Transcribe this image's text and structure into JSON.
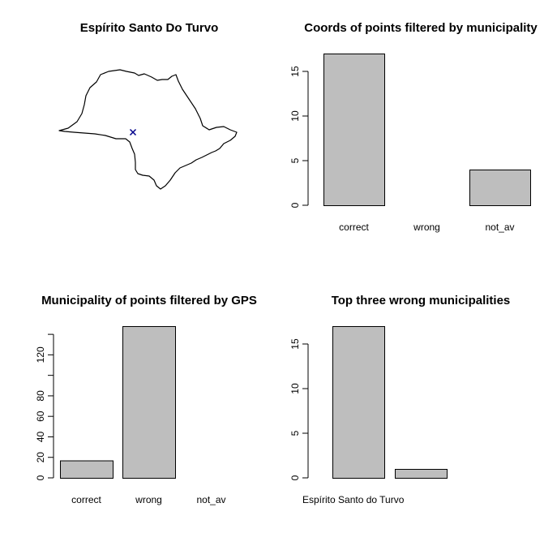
{
  "map": {
    "title": "Espírito Santo Do Turvo",
    "marker_color": "#00008b"
  },
  "chart_data": [
    {
      "type": "bar",
      "title": "Coords of points filtered by municipality",
      "categories": [
        "correct",
        "wrong",
        "not_av"
      ],
      "values": [
        17,
        0,
        4
      ],
      "ylim": [
        0,
        17
      ],
      "yticks": [
        0,
        5,
        10,
        15
      ],
      "bar_color": "#bebebe"
    },
    {
      "type": "bar",
      "title": "Municipality of points filtered by GPS",
      "categories": [
        "correct",
        "wrong",
        "not_av"
      ],
      "values": [
        17,
        148,
        0
      ],
      "ylim": [
        0,
        148
      ],
      "yticks": [
        0,
        20,
        40,
        60,
        80,
        100,
        120,
        140
      ],
      "ytick_labels": [
        "0",
        "20",
        "40",
        "60",
        "80",
        "",
        "120",
        ""
      ],
      "bar_color": "#bebebe"
    },
    {
      "type": "bar",
      "title": "Top three wrong municipalities",
      "categories": [
        "Espírito Santo do Turvo",
        ""
      ],
      "values": [
        17,
        1
      ],
      "ylim": [
        0,
        17
      ],
      "yticks": [
        0,
        5,
        10,
        15
      ],
      "bar_color": "#bebebe"
    }
  ]
}
